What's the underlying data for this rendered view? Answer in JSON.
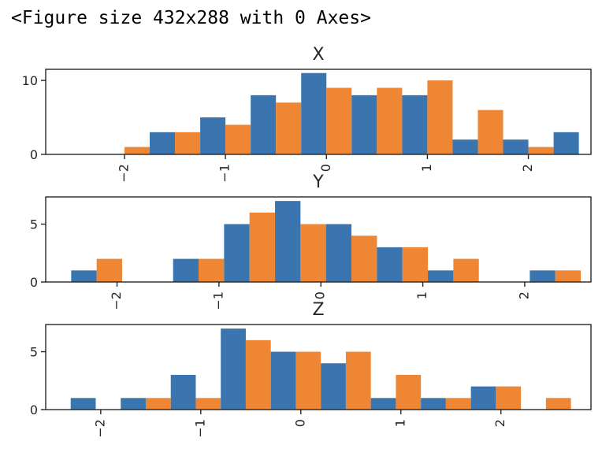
{
  "output_text": "<Figure size 432x288 with 0 Axes>",
  "colors": {
    "series_a": "#3a75b0",
    "series_b": "#ef8634",
    "axes": "#262626"
  },
  "chart_data": [
    {
      "type": "bar",
      "title": "X",
      "bin_edges": [
        -2.25,
        -1.75,
        -1.25,
        -0.75,
        -0.25,
        0.25,
        0.75,
        1.25,
        1.75,
        2.25
      ],
      "bin_width": 0.5,
      "series": [
        {
          "values": [
            0,
            3,
            5,
            8,
            11,
            8,
            8,
            2,
            2,
            3
          ]
        },
        {
          "values": [
            1,
            3,
            4,
            7,
            9,
            9,
            10,
            6,
            1,
            0
          ]
        }
      ],
      "xlim": [
        -2.78,
        2.62
      ],
      "ylim": [
        0,
        11.5
      ],
      "xticks": [
        -2,
        -1,
        0,
        1,
        2
      ],
      "xtick_labels": [
        "−2",
        "−1",
        "0",
        "1",
        "2"
      ],
      "yticks": [
        0,
        10
      ],
      "ytick_labels": [
        "0",
        "10"
      ]
    },
    {
      "type": "bar",
      "title": "Y",
      "bin_edges": [
        -2.45,
        -1.95,
        -1.45,
        -0.95,
        -0.45,
        0.05,
        0.55,
        1.05,
        1.55,
        2.05
      ],
      "bin_width": 0.5,
      "series": [
        {
          "values": [
            1,
            0,
            2,
            5,
            7,
            5,
            3,
            1,
            0,
            1
          ]
        },
        {
          "values": [
            2,
            0,
            2,
            6,
            5,
            4,
            3,
            2,
            0,
            1
          ]
        }
      ],
      "xlim": [
        -2.7,
        2.65
      ],
      "ylim": [
        0,
        7.35
      ],
      "xticks": [
        -2,
        -1,
        0,
        1,
        2
      ],
      "xtick_labels": [
        "−2",
        "−1",
        "0",
        "1",
        "2"
      ],
      "yticks": [
        0,
        5
      ],
      "ytick_labels": [
        "0",
        "5"
      ]
    },
    {
      "type": "bar",
      "title": "Z",
      "bin_edges": [
        -2.3,
        -1.8,
        -1.3,
        -0.8,
        -0.3,
        0.2,
        0.7,
        1.2,
        1.7,
        2.2
      ],
      "bin_width": 0.5,
      "series": [
        {
          "values": [
            1,
            1,
            3,
            7,
            5,
            4,
            1,
            1,
            2,
            0
          ]
        },
        {
          "values": [
            0,
            1,
            1,
            6,
            5,
            5,
            3,
            1,
            2,
            1
          ]
        }
      ],
      "xlim": [
        -2.55,
        2.9
      ],
      "ylim": [
        0,
        7.35
      ],
      "xticks": [
        -2,
        -1,
        0,
        1,
        2
      ],
      "xtick_labels": [
        "−2",
        "−1",
        "0",
        "1",
        "2"
      ],
      "yticks": [
        0,
        5
      ],
      "ytick_labels": [
        "0",
        "5"
      ]
    }
  ]
}
